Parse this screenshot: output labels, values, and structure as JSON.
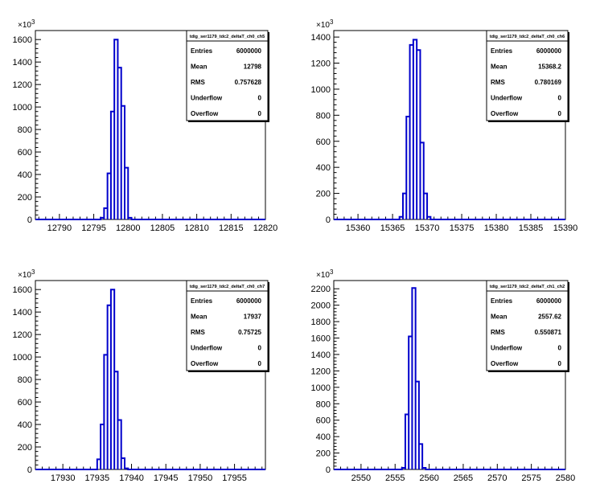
{
  "chart_data": [
    {
      "type": "bar",
      "stats_title": "tdig_ser1179_tdc2_deltaT_ch0_ch5",
      "stats": [
        {
          "label": "Entries",
          "value": "6000000"
        },
        {
          "label": "Mean",
          "value": "12798"
        },
        {
          "label": "RMS",
          "value": "0.757628"
        },
        {
          "label": "Underflow",
          "value": "0"
        },
        {
          "label": "Overflow",
          "value": "0"
        }
      ],
      "y_exponent_label": "×10",
      "y_exponent": "3",
      "xlim": [
        12786.5,
        12820
      ],
      "ylim": [
        0,
        1680
      ],
      "xticks": [
        12790,
        12795,
        12800,
        12805,
        12810,
        12815,
        12820
      ],
      "yticks": [
        0,
        200,
        400,
        600,
        800,
        1000,
        1200,
        1400,
        1600
      ],
      "bin_width": 0.5,
      "bins": [
        {
          "x": 12796.0,
          "y": 15
        },
        {
          "x": 12796.5,
          "y": 100
        },
        {
          "x": 12797.0,
          "y": 410
        },
        {
          "x": 12797.5,
          "y": 960
        },
        {
          "x": 12798.0,
          "y": 1600
        },
        {
          "x": 12798.5,
          "y": 1350
        },
        {
          "x": 12799.0,
          "y": 1010
        },
        {
          "x": 12799.5,
          "y": 460
        },
        {
          "x": 12800.0,
          "y": 15
        }
      ]
    },
    {
      "type": "bar",
      "stats_title": "tdig_ser1179_tdc2_deltaT_ch0_ch6",
      "stats": [
        {
          "label": "Entries",
          "value": "6000000"
        },
        {
          "label": "Mean",
          "value": "15368.2"
        },
        {
          "label": "RMS",
          "value": "0.780169"
        },
        {
          "label": "Underflow",
          "value": "0"
        },
        {
          "label": "Overflow",
          "value": "0"
        }
      ],
      "y_exponent_label": "×10",
      "y_exponent": "3",
      "xlim": [
        15356.5,
        15390
      ],
      "ylim": [
        0,
        1450
      ],
      "xticks": [
        15360,
        15365,
        15370,
        15375,
        15380,
        15385,
        15390
      ],
      "yticks": [
        0,
        200,
        400,
        600,
        800,
        1000,
        1200,
        1400
      ],
      "bin_width": 0.5,
      "bins": [
        {
          "x": 15366.0,
          "y": 20
        },
        {
          "x": 15366.5,
          "y": 200
        },
        {
          "x": 15367.0,
          "y": 790
        },
        {
          "x": 15367.5,
          "y": 1340
        },
        {
          "x": 15368.0,
          "y": 1380
        },
        {
          "x": 15368.5,
          "y": 1300
        },
        {
          "x": 15369.0,
          "y": 590
        },
        {
          "x": 15369.5,
          "y": 200
        },
        {
          "x": 15370.0,
          "y": 20
        }
      ]
    },
    {
      "type": "bar",
      "stats_title": "tdig_ser1179_tdc2_deltaT_ch0_ch7",
      "stats": [
        {
          "label": "Entries",
          "value": "6000000"
        },
        {
          "label": "Mean",
          "value": "17937"
        },
        {
          "label": "RMS",
          "value": "0.75725"
        },
        {
          "label": "Underflow",
          "value": "0"
        },
        {
          "label": "Overflow",
          "value": "0"
        }
      ],
      "y_exponent_label": "×10",
      "y_exponent": "3",
      "xlim": [
        17926,
        17959.5
      ],
      "ylim": [
        0,
        1680
      ],
      "xticks": [
        17930,
        17935,
        17940,
        17945,
        17950,
        17955
      ],
      "yticks": [
        0,
        200,
        400,
        600,
        800,
        1000,
        1200,
        1400,
        1600
      ],
      "bin_width": 0.5,
      "bins": [
        {
          "x": 17935.0,
          "y": 90
        },
        {
          "x": 17935.5,
          "y": 400
        },
        {
          "x": 17936.0,
          "y": 1020
        },
        {
          "x": 17936.5,
          "y": 1460
        },
        {
          "x": 17937.0,
          "y": 1600
        },
        {
          "x": 17937.5,
          "y": 870
        },
        {
          "x": 17938.0,
          "y": 440
        },
        {
          "x": 17938.5,
          "y": 100
        },
        {
          "x": 17939.0,
          "y": 10
        }
      ]
    },
    {
      "type": "bar",
      "stats_title": "tdig_ser1179_tdc2_deltaT_ch1_ch2",
      "stats": [
        {
          "label": "Entries",
          "value": "6000000"
        },
        {
          "label": "Mean",
          "value": "2557.62"
        },
        {
          "label": "RMS",
          "value": "0.550871"
        },
        {
          "label": "Underflow",
          "value": "0"
        },
        {
          "label": "Overflow",
          "value": "0"
        }
      ],
      "y_exponent_label": "×10",
      "y_exponent": "3",
      "xlim": [
        2546,
        2580
      ],
      "ylim": [
        0,
        2300
      ],
      "xticks": [
        2550,
        2555,
        2560,
        2565,
        2570,
        2575,
        2580
      ],
      "yticks": [
        0,
        200,
        400,
        600,
        800,
        1000,
        1200,
        1400,
        1600,
        1800,
        2000,
        2200
      ],
      "bin_width": 0.5,
      "bins": [
        {
          "x": 2556.0,
          "y": 20
        },
        {
          "x": 2556.5,
          "y": 670
        },
        {
          "x": 2557.0,
          "y": 1620
        },
        {
          "x": 2557.5,
          "y": 2210
        },
        {
          "x": 2558.0,
          "y": 1070
        },
        {
          "x": 2558.5,
          "y": 310
        },
        {
          "x": 2559.0,
          "y": 20
        }
      ]
    }
  ]
}
